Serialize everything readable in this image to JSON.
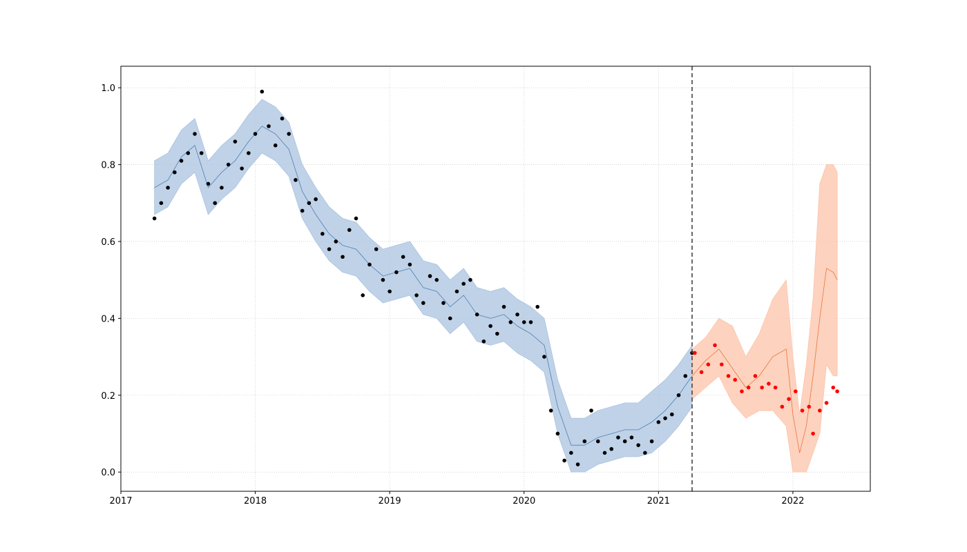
{
  "chart_data": {
    "type": "forecast",
    "xlim": [
      2017,
      2022.576
    ],
    "ylim": [
      -0.05,
      1.056
    ],
    "xticks": [
      2017,
      2018,
      2019,
      2020,
      2021,
      2022
    ],
    "yticks": [
      {
        "value": 0,
        "label": "0.0"
      },
      {
        "value": 0.2,
        "label": "0.2"
      },
      {
        "value": 0.4,
        "label": "0.4"
      },
      {
        "value": 0.6,
        "label": "0.6"
      },
      {
        "value": 0.8,
        "label": "0.8"
      },
      {
        "value": 1,
        "label": "1.0"
      }
    ],
    "grid": true,
    "cutoff_x": 2021.25,
    "fit": {
      "color": "#4d7fb0",
      "band_color": "#a9c3df",
      "x": [
        2017.25,
        2017.35,
        2017.45,
        2017.55,
        2017.65,
        2017.75,
        2017.85,
        2017.95,
        2018.05,
        2018.15,
        2018.25,
        2018.35,
        2018.45,
        2018.55,
        2018.65,
        2018.75,
        2018.85,
        2018.95,
        2019.05,
        2019.15,
        2019.25,
        2019.35,
        2019.45,
        2019.55,
        2019.65,
        2019.75,
        2019.85,
        2019.95,
        2020.05,
        2020.15,
        2020.25,
        2020.35,
        2020.45,
        2020.55,
        2020.65,
        2020.75,
        2020.85,
        2020.95,
        2021.05,
        2021.15,
        2021.25
      ],
      "values": [
        0.74,
        0.76,
        0.82,
        0.85,
        0.74,
        0.78,
        0.81,
        0.86,
        0.9,
        0.88,
        0.84,
        0.73,
        0.67,
        0.62,
        0.59,
        0.58,
        0.54,
        0.51,
        0.52,
        0.53,
        0.48,
        0.47,
        0.43,
        0.46,
        0.41,
        0.4,
        0.41,
        0.38,
        0.36,
        0.33,
        0.17,
        0.07,
        0.07,
        0.09,
        0.1,
        0.11,
        0.11,
        0.13,
        0.16,
        0.2,
        0.25
      ],
      "lower": [
        0.67,
        0.69,
        0.75,
        0.78,
        0.67,
        0.71,
        0.74,
        0.79,
        0.83,
        0.81,
        0.77,
        0.66,
        0.6,
        0.55,
        0.52,
        0.51,
        0.47,
        0.44,
        0.45,
        0.46,
        0.41,
        0.4,
        0.36,
        0.39,
        0.34,
        0.33,
        0.34,
        0.31,
        0.29,
        0.26,
        0.1,
        0.0,
        0.0,
        0.02,
        0.03,
        0.04,
        0.04,
        0.05,
        0.08,
        0.12,
        0.17
      ],
      "upper": [
        0.81,
        0.83,
        0.89,
        0.92,
        0.81,
        0.85,
        0.88,
        0.93,
        0.97,
        0.95,
        0.91,
        0.8,
        0.74,
        0.69,
        0.66,
        0.65,
        0.61,
        0.58,
        0.59,
        0.6,
        0.55,
        0.54,
        0.5,
        0.53,
        0.48,
        0.47,
        0.48,
        0.45,
        0.43,
        0.4,
        0.24,
        0.14,
        0.14,
        0.16,
        0.17,
        0.18,
        0.18,
        0.21,
        0.24,
        0.28,
        0.33
      ]
    },
    "forecast": {
      "color": "#e8743b",
      "band_color": "#fcc4aa",
      "x": [
        2021.25,
        2021.35,
        2021.45,
        2021.55,
        2021.65,
        2021.75,
        2021.85,
        2021.95,
        2022.0,
        2022.05,
        2022.1,
        2022.15,
        2022.2,
        2022.25,
        2022.3,
        2022.33
      ],
      "values": [
        0.25,
        0.29,
        0.32,
        0.27,
        0.22,
        0.25,
        0.3,
        0.32,
        0.15,
        0.05,
        0.12,
        0.25,
        0.4,
        0.53,
        0.52,
        0.5
      ],
      "lower": [
        0.19,
        0.22,
        0.25,
        0.18,
        0.14,
        0.16,
        0.16,
        0.12,
        0.0,
        0.0,
        0.0,
        0.05,
        0.1,
        0.28,
        0.25,
        0.25
      ],
      "upper": [
        0.32,
        0.35,
        0.4,
        0.38,
        0.3,
        0.36,
        0.45,
        0.5,
        0.3,
        0.15,
        0.28,
        0.45,
        0.75,
        0.8,
        0.8,
        0.78
      ]
    },
    "history": {
      "color": "#000000",
      "x": [
        2017.25,
        2017.3,
        2017.35,
        2017.4,
        2017.45,
        2017.5,
        2017.55,
        2017.6,
        2017.65,
        2017.7,
        2017.75,
        2017.8,
        2017.85,
        2017.9,
        2017.95,
        2018.0,
        2018.05,
        2018.1,
        2018.15,
        2018.2,
        2018.25,
        2018.3,
        2018.35,
        2018.4,
        2018.45,
        2018.5,
        2018.55,
        2018.6,
        2018.65,
        2018.7,
        2018.75,
        2018.8,
        2018.85,
        2018.9,
        2018.95,
        2019.0,
        2019.05,
        2019.1,
        2019.15,
        2019.2,
        2019.25,
        2019.3,
        2019.35,
        2019.4,
        2019.45,
        2019.5,
        2019.55,
        2019.6,
        2019.65,
        2019.7,
        2019.75,
        2019.8,
        2019.85,
        2019.9,
        2019.95,
        2020.0,
        2020.05,
        2020.1,
        2020.15,
        2020.2,
        2020.25,
        2020.3,
        2020.35,
        2020.4,
        2020.45,
        2020.5,
        2020.55,
        2020.6,
        2020.65,
        2020.7,
        2020.75,
        2020.8,
        2020.85,
        2020.9,
        2020.95,
        2021.0,
        2021.05,
        2021.1,
        2021.15,
        2021.2,
        2021.25
      ],
      "values": [
        0.66,
        0.7,
        0.74,
        0.78,
        0.81,
        0.83,
        0.88,
        0.83,
        0.75,
        0.7,
        0.74,
        0.8,
        0.86,
        0.79,
        0.83,
        0.88,
        0.99,
        0.9,
        0.85,
        0.92,
        0.88,
        0.76,
        0.68,
        0.7,
        0.71,
        0.62,
        0.58,
        0.6,
        0.56,
        0.63,
        0.66,
        0.46,
        0.54,
        0.58,
        0.5,
        0.47,
        0.52,
        0.56,
        0.54,
        0.46,
        0.44,
        0.51,
        0.5,
        0.44,
        0.4,
        0.47,
        0.49,
        0.5,
        0.41,
        0.34,
        0.38,
        0.36,
        0.43,
        0.39,
        0.41,
        0.39,
        0.39,
        0.43,
        0.3,
        0.16,
        0.1,
        0.03,
        0.05,
        0.02,
        0.08,
        0.16,
        0.08,
        0.05,
        0.06,
        0.09,
        0.08,
        0.09,
        0.07,
        0.05,
        0.08,
        0.13,
        0.14,
        0.15,
        0.2,
        0.25,
        0.31
      ]
    },
    "test": {
      "color": "#ff0000",
      "x": [
        2021.27,
        2021.32,
        2021.37,
        2021.42,
        2021.47,
        2021.52,
        2021.57,
        2021.62,
        2021.67,
        2021.72,
        2021.77,
        2021.82,
        2021.87,
        2021.92,
        2021.97,
        2022.02,
        2022.07,
        2022.12,
        2022.15,
        2022.2,
        2022.25,
        2022.3,
        2022.33
      ],
      "values": [
        0.31,
        0.26,
        0.28,
        0.33,
        0.28,
        0.25,
        0.24,
        0.21,
        0.22,
        0.25,
        0.22,
        0.23,
        0.22,
        0.17,
        0.19,
        0.21,
        0.16,
        0.17,
        0.1,
        0.16,
        0.18,
        0.22,
        0.21
      ]
    }
  }
}
